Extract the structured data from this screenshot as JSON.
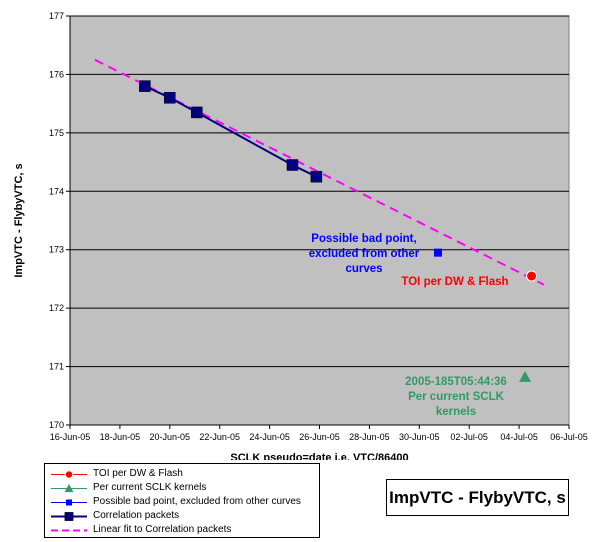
{
  "chart_data": {
    "type": "scatter",
    "xlabel": "SCLK pseudo=date i.e. VTC/86400",
    "ylabel": "ImpVTC - FlybyVTC, s",
    "ylim": [
      170,
      177
    ],
    "y_ticks": [
      170,
      171,
      172,
      173,
      174,
      175,
      176,
      177
    ],
    "x_ticks": [
      "16-Jun-05",
      "18-Jun-05",
      "20-Jun-05",
      "22-Jun-05",
      "24-Jun-05",
      "26-Jun-05",
      "28-Jun-05",
      "30-Jun-05",
      "02-Jul-05",
      "04-Jul-05",
      "06-Jul-05"
    ],
    "plot_background": "#c0c0c0",
    "gridlines": "horizontal",
    "series": [
      {
        "name": "TOI per DW & Flash",
        "marker": "circle",
        "color": "#ff0000",
        "points": [
          {
            "x": "2005-07-04T12:00",
            "y": 172.55
          }
        ]
      },
      {
        "name": "Per current SCLK kernels",
        "marker": "triangle",
        "color": "#339966",
        "points": [
          {
            "x": "2005-07-04T05:44:36",
            "y": 170.82
          }
        ]
      },
      {
        "name": "Possible bad point, excluded from other curves",
        "marker": "square",
        "color": "#0000ff",
        "points": [
          {
            "x": "2005-06-30T18:00",
            "y": 172.95
          }
        ]
      },
      {
        "name": "Correlation packets",
        "marker": "square-line",
        "color": "#000080",
        "points": [
          {
            "x": "2005-06-19T00:00",
            "y": 175.8
          },
          {
            "x": "2005-06-20T00:00",
            "y": 175.6
          },
          {
            "x": "2005-06-21T02:00",
            "y": 175.35
          },
          {
            "x": "2005-06-24T22:00",
            "y": 174.45
          },
          {
            "x": "2005-06-25T21:00",
            "y": 174.25
          }
        ]
      },
      {
        "name": "Linear fit to Correlation packets",
        "marker": "dashed-line",
        "color": "#ff00ff",
        "points": [
          {
            "x": "2005-06-17T00:00",
            "y": 176.25
          },
          {
            "x": "2005-07-05T00:00",
            "y": 172.4
          }
        ]
      }
    ],
    "annotations": [
      {
        "lines": [
          "Possible bad point,",
          "excluded from other",
          "curves"
        ],
        "color": "#0000ff"
      },
      {
        "lines": [
          "TOI per DW & Flash"
        ],
        "color": "#ff0000"
      },
      {
        "lines": [
          "2005-185T05:44:36",
          "Per current SCLK",
          "kernels"
        ],
        "color": "#339966"
      }
    ],
    "title_box": "ImpVTC - FlybyVTC, s",
    "legend_position": "bottom-left"
  }
}
